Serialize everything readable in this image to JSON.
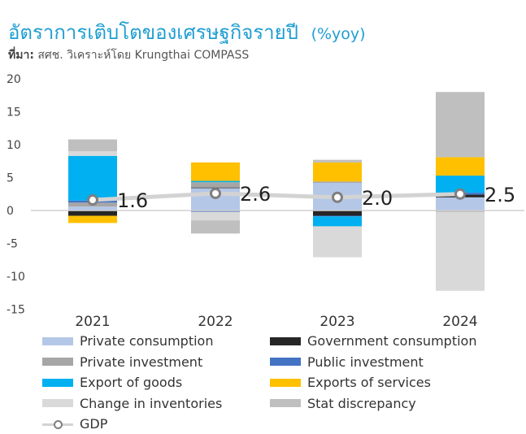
{
  "title": "อัตราการเติบโตของเศรษฐกิจรายปี",
  "title_unit": "(%yoy)",
  "source_label": "ที่มา:",
  "source_text": "สศช. วิเคราะห์โดย Krungthai COMPASS",
  "colors": {
    "private_consumption": "#b4c7e7",
    "private_investment": "#a6a6a6",
    "export_goods": "#00b0f0",
    "change_inventories": "#d9d9d9",
    "government_consumption": "#262626",
    "public_investment": "#4472c4",
    "exports_services": "#ffc000",
    "stat_discrepancy": "#bfbfbf",
    "gdp_line": "#d3d3d3",
    "gdp_marker": "#7f7f7f"
  },
  "legend": [
    {
      "key": "private_consumption",
      "label": "Private consumption"
    },
    {
      "key": "government_consumption",
      "label": "Government consumption"
    },
    {
      "key": "private_investment",
      "label": "Private investment"
    },
    {
      "key": "public_investment",
      "label": "Public investment"
    },
    {
      "key": "export_goods",
      "label": "Export of goods"
    },
    {
      "key": "exports_services",
      "label": "Exports of services"
    },
    {
      "key": "change_inventories",
      "label": "Change in inventories"
    },
    {
      "key": "stat_discrepancy",
      "label": "Stat discrepancy"
    },
    {
      "key": "gdp",
      "label": "GDP"
    }
  ],
  "chart_data": {
    "type": "bar",
    "stacked": true,
    "categories": [
      "2021",
      "2022",
      "2023",
      "2024"
    ],
    "ylim": [
      -15,
      20
    ],
    "yticks": [
      -15,
      -10,
      -5,
      0,
      5,
      10,
      15,
      20
    ],
    "grid": false,
    "legend_position": "bottom",
    "series": [
      {
        "key": "private_consumption",
        "name": "Private consumption",
        "values": [
          0.6,
          3.4,
          4.2,
          2.0
        ]
      },
      {
        "key": "government_consumption",
        "name": "Government consumption",
        "values": [
          -0.8,
          0.1,
          -0.8,
          0.4
        ]
      },
      {
        "key": "private_investment",
        "name": "Private investment",
        "values": [
          0.6,
          0.8,
          0.2,
          -0.2
        ]
      },
      {
        "key": "public_investment",
        "name": "Public investment",
        "values": [
          0.3,
          -0.2,
          -0.1,
          0.3
        ]
      },
      {
        "key": "export_goods",
        "name": "Export of goods",
        "values": [
          6.8,
          0.2,
          -1.5,
          2.6
        ]
      },
      {
        "key": "exports_services",
        "name": "Exports of services",
        "values": [
          -1.1,
          2.8,
          2.9,
          2.8
        ]
      },
      {
        "key": "change_inventories",
        "name": "Change in inventories",
        "values": [
          0.7,
          -1.3,
          -4.7,
          -12.0
        ]
      },
      {
        "key": "stat_discrepancy",
        "name": "Stat discrepancy",
        "values": [
          1.8,
          -2.0,
          0.4,
          9.9
        ]
      }
    ],
    "gdp": {
      "name": "GDP",
      "values": [
        1.6,
        2.6,
        2.0,
        2.5
      ],
      "labels": [
        "1.6",
        "2.6",
        "2.0",
        "2.5"
      ]
    }
  }
}
